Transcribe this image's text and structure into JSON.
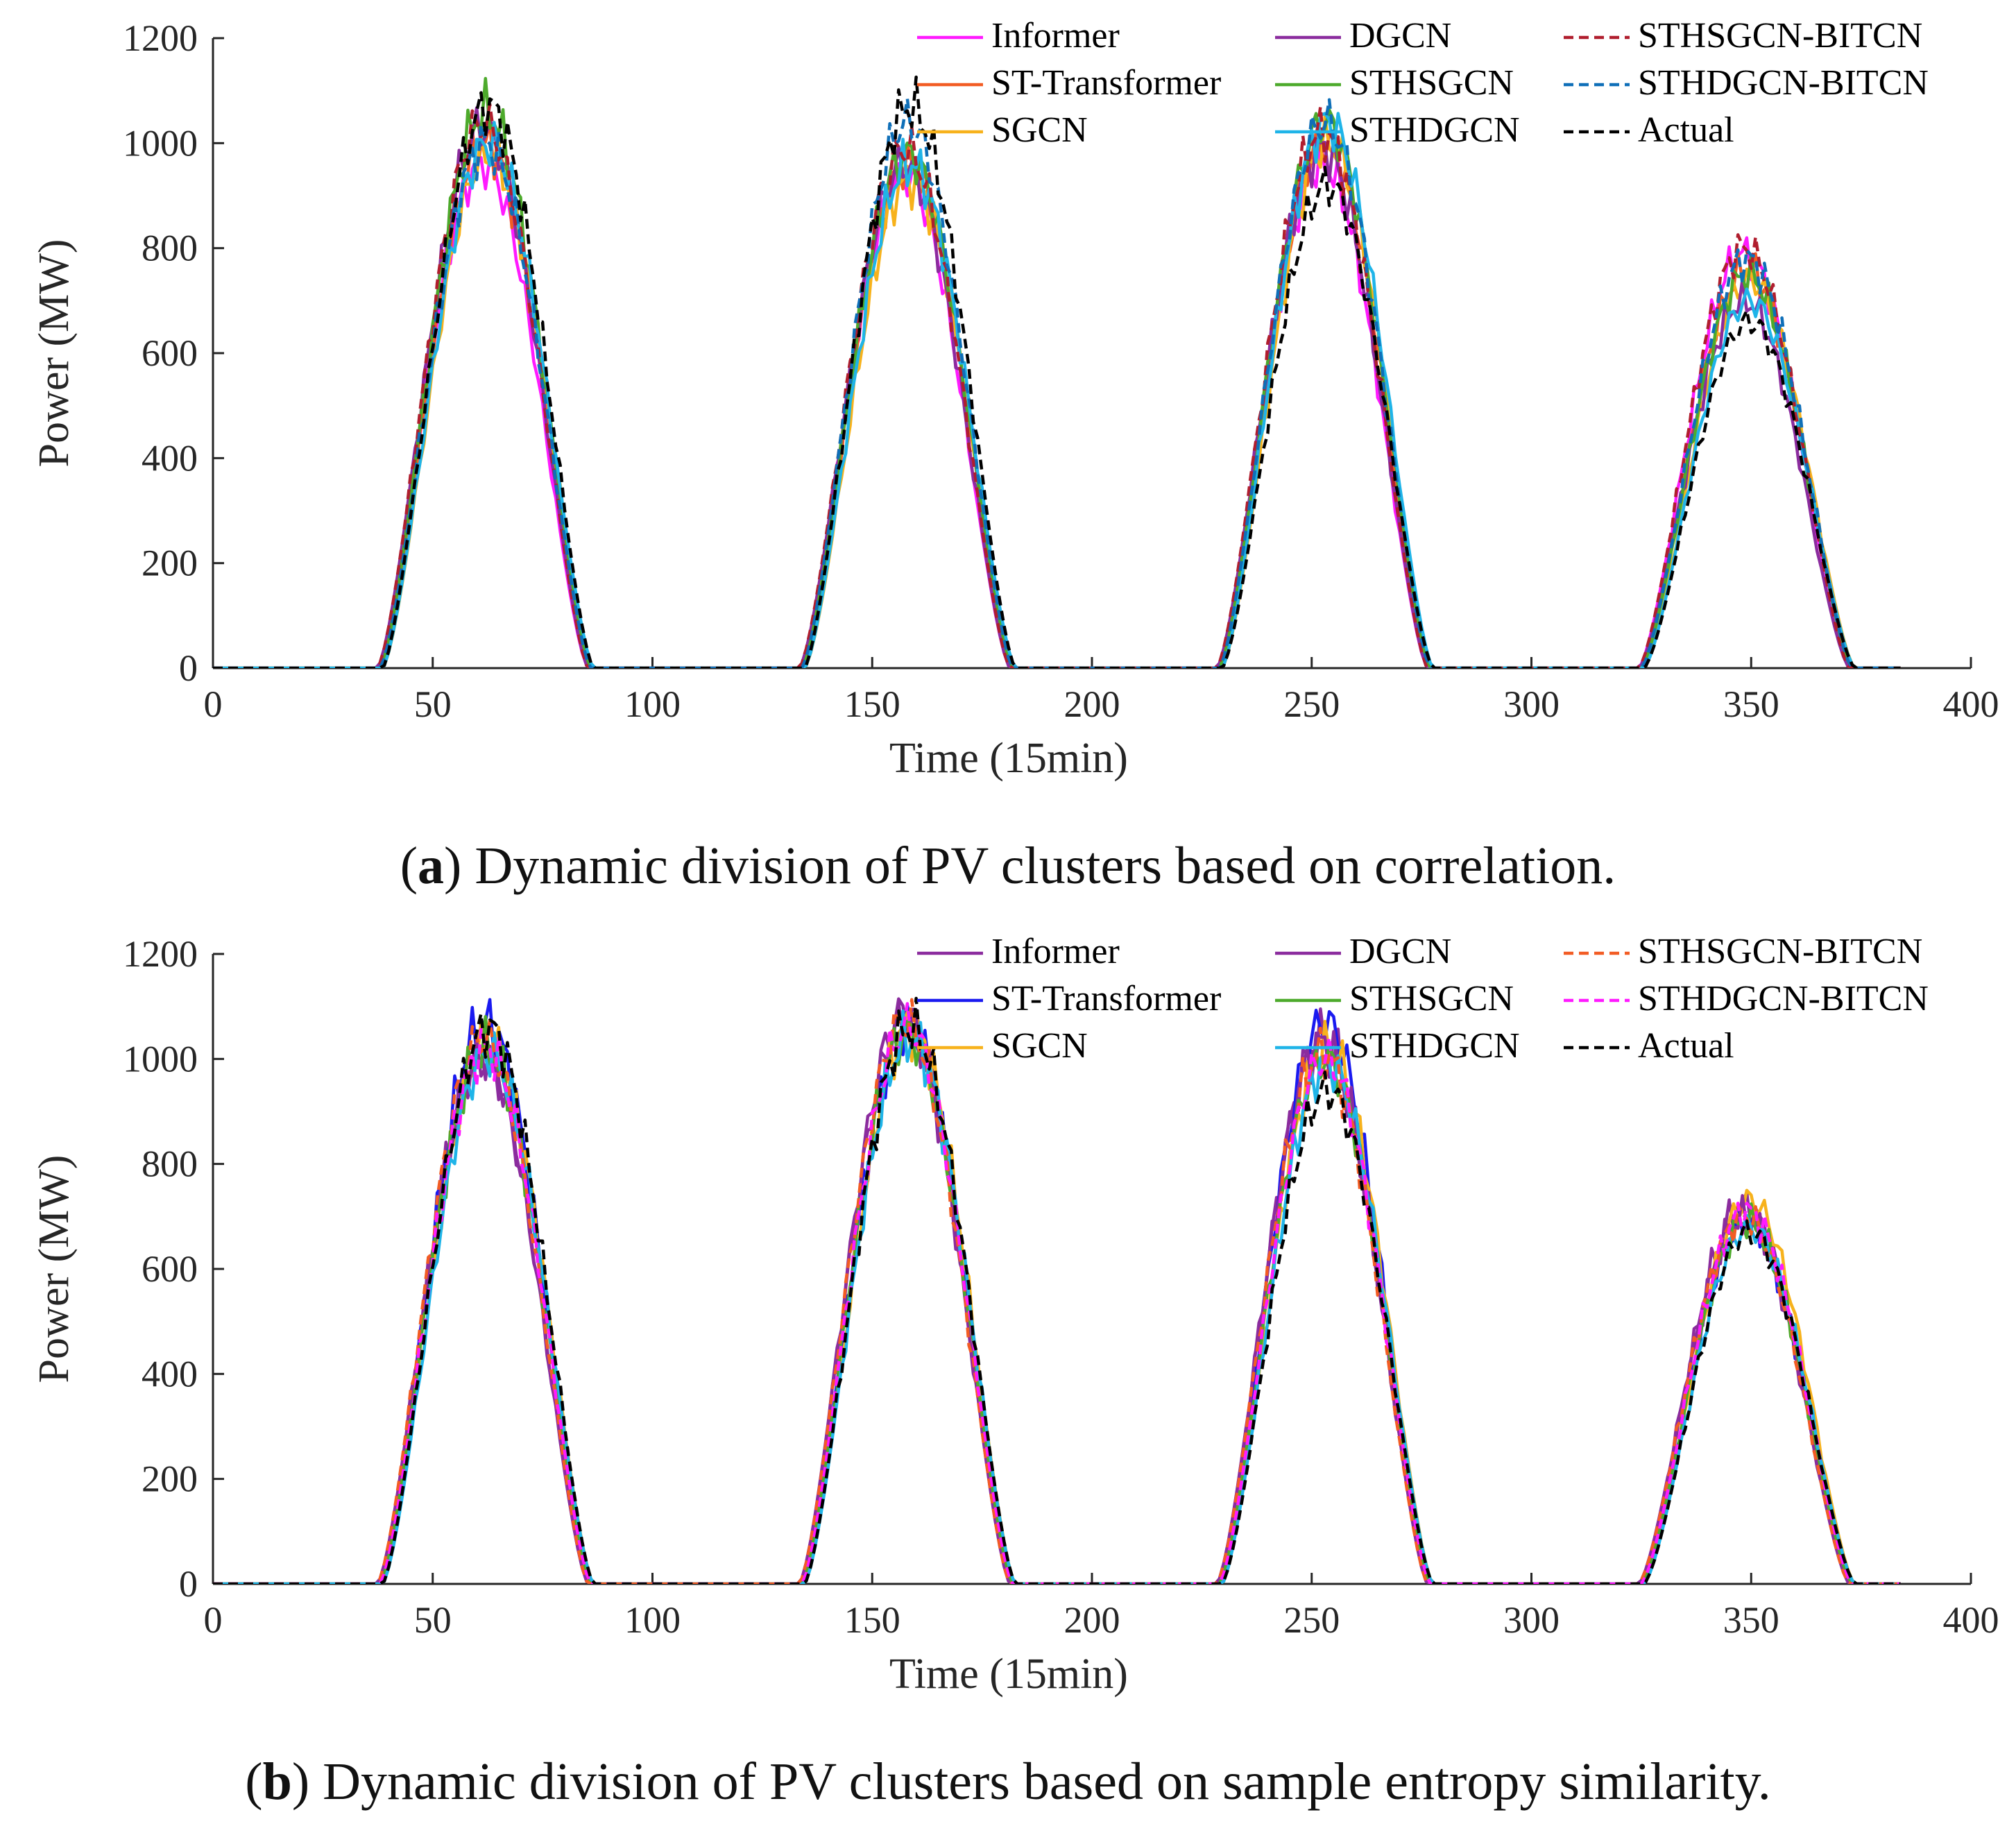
{
  "chart_data": [
    {
      "id": "a",
      "type": "line",
      "caption_letter": "a",
      "caption_text": ") Dynamic division of PV clusters based on correlation.",
      "xlabel": "Time (15min)",
      "ylabel": "Power (MW)",
      "xlim": [
        0,
        400
      ],
      "ylim": [
        0,
        1200
      ],
      "xticks": [
        "0",
        "50",
        "100",
        "150",
        "200",
        "250",
        "300",
        "350",
        "400"
      ],
      "yticks": [
        "0",
        "200",
        "400",
        "600",
        "800",
        "1000",
        "1200"
      ],
      "legend_position": "top-right",
      "day_starts": [
        38,
        134,
        229,
        325
      ],
      "series": [
        {
          "name": "Informer",
          "color": "#ff1aff",
          "dash": "none",
          "peaks": [
            960,
            940,
            960,
            790
          ]
        },
        {
          "name": "ST-Transformer",
          "color": "#f25c24",
          "dash": "none",
          "peaks": [
            1000,
            960,
            1000,
            760
          ]
        },
        {
          "name": "SGCN",
          "color": "#f7b21c",
          "dash": "none",
          "peaks": [
            980,
            930,
            1000,
            740
          ]
        },
        {
          "name": "DGCN",
          "color": "#8b2c9e",
          "dash": "none",
          "peaks": [
            1030,
            960,
            990,
            700
          ]
        },
        {
          "name": "STHSGCN",
          "color": "#4daa2c",
          "dash": "none",
          "peaks": [
            1060,
            980,
            1040,
            750
          ]
        },
        {
          "name": "STHDGCN",
          "color": "#1fb4e8",
          "dash": "none",
          "peaks": [
            1000,
            960,
            1040,
            700
          ]
        },
        {
          "name": "STHSGCN-BITCN",
          "color": "#b01e2e",
          "dash": "dash",
          "peaks": [
            1040,
            990,
            1020,
            800
          ]
        },
        {
          "name": "STHDGCN-BITCN",
          "color": "#0f6fb8",
          "dash": "dash",
          "peaks": [
            1000,
            1040,
            1040,
            780
          ]
        },
        {
          "name": "Actual",
          "color": "#000000",
          "dash": "dash",
          "peaks": [
            1070,
            1070,
            920,
            660
          ]
        }
      ]
    },
    {
      "id": "b",
      "type": "line",
      "caption_letter": "b",
      "caption_text": ") Dynamic division of PV clusters based on sample entropy similarity.",
      "xlabel": "Time (15min)",
      "ylabel": "Power (MW)",
      "xlim": [
        0,
        400
      ],
      "ylim": [
        0,
        1200
      ],
      "xticks": [
        "0",
        "50",
        "100",
        "150",
        "200",
        "250",
        "300",
        "350",
        "400"
      ],
      "yticks": [
        "0",
        "200",
        "400",
        "600",
        "800",
        "1000",
        "1200"
      ],
      "legend_position": "top-right",
      "day_starts": [
        38,
        134,
        229,
        325
      ],
      "series": [
        {
          "name": "Informer",
          "color": "#8b2c9e",
          "dash": "none",
          "peaks": [
            1010,
            1090,
            1040,
            720
          ]
        },
        {
          "name": "ST-Transformer",
          "color": "#1a1af0",
          "dash": "none",
          "peaks": [
            1070,
            1060,
            1070,
            690
          ]
        },
        {
          "name": "SGCN",
          "color": "#f7b21c",
          "dash": "none",
          "peaks": [
            1030,
            1060,
            1020,
            730
          ]
        },
        {
          "name": "DGCN",
          "color": "#8b2c9e",
          "dash": "none",
          "peaks": [
            1000,
            1070,
            1030,
            700
          ]
        },
        {
          "name": "STHSGCN",
          "color": "#4daa2c",
          "dash": "none",
          "peaks": [
            1020,
            1050,
            1000,
            690
          ]
        },
        {
          "name": "STHDGCN",
          "color": "#1fb4e8",
          "dash": "none",
          "peaks": [
            1010,
            1040,
            990,
            680
          ]
        },
        {
          "name": "STHSGCN-BITCN",
          "color": "#f25c24",
          "dash": "dash",
          "peaks": [
            1040,
            1070,
            1010,
            700
          ]
        },
        {
          "name": "STHDGCN-BITCN",
          "color": "#ff1aff",
          "dash": "dash",
          "peaks": [
            1020,
            1060,
            1000,
            710
          ]
        },
        {
          "name": "Actual",
          "color": "#000000",
          "dash": "dash",
          "peaks": [
            1060,
            1060,
            940,
            670
          ]
        }
      ]
    }
  ]
}
